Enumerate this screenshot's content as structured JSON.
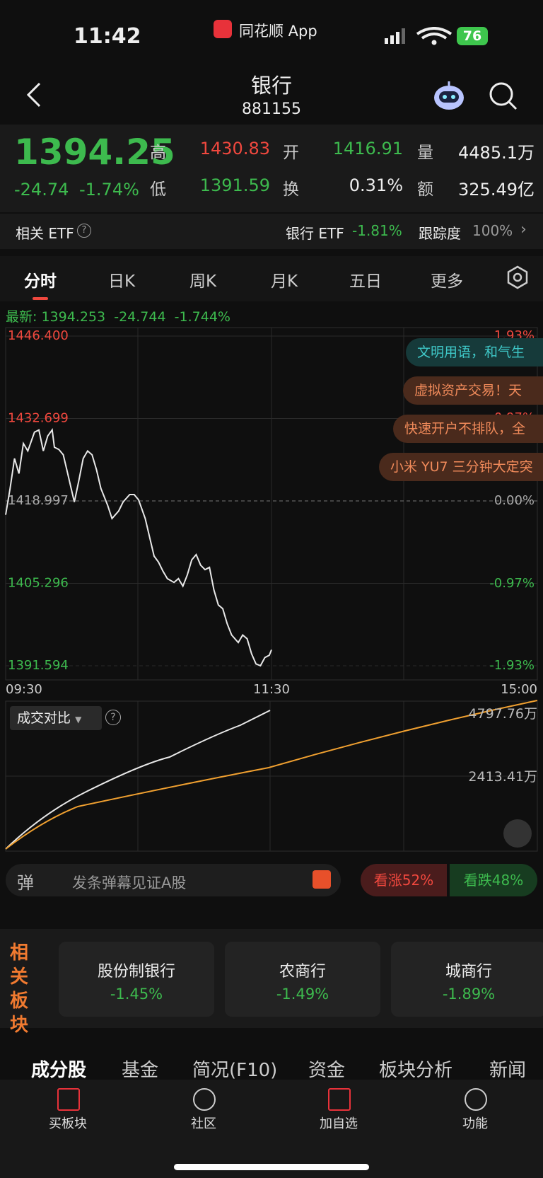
{
  "status_bar": {
    "time": "11:42",
    "app": "同花顺 App",
    "battery": "76"
  },
  "header": {
    "title": "银行",
    "code": "881155"
  },
  "quote": {
    "price": "1394.25",
    "change": "-24.74",
    "change_pct": "-1.74%",
    "fields": [
      {
        "label": "高",
        "value": "1430.83"
      },
      {
        "label": "开",
        "value": "1416.91"
      },
      {
        "label": "量",
        "value": "4485.1万"
      },
      {
        "label": "低",
        "value": "1391.59"
      },
      {
        "label": "换",
        "value": "0.31%"
      },
      {
        "label": "额",
        "value": "325.49亿"
      }
    ]
  },
  "etf": {
    "label": "相关 ETF",
    "name": "银行 ETF",
    "change": "-1.81%",
    "tracking_label": "跟踪度",
    "tracking": "100%"
  },
  "tabs": [
    "分时",
    "日K",
    "周K",
    "月K",
    "五日",
    "更多"
  ],
  "latest": {
    "label": "最新:",
    "price": "1394.253",
    "change": "-24.744",
    "change_pct": "-1.744%"
  },
  "danmaku": [
    "文明用语，和气生",
    "虚拟资产交易！天",
    "快速开户不排队，全",
    "小米 YU7 三分钟大定突"
  ],
  "chart_data": {
    "type": "line",
    "color": "#e8e8e8",
    "x": [
      0,
      2,
      4,
      6,
      8,
      10,
      13,
      15,
      17,
      19,
      21,
      22,
      24,
      26,
      28,
      31,
      33,
      35,
      37,
      39,
      41,
      43,
      46,
      48,
      51,
      53,
      56,
      58,
      60,
      63,
      65,
      67,
      69,
      71,
      73,
      76,
      78,
      80,
      82,
      84,
      86,
      88,
      90,
      92,
      94,
      96,
      98,
      100,
      102,
      105,
      107,
      109,
      111,
      113,
      115,
      117,
      119,
      120
    ],
    "values": [
      1416.69,
      1421.06,
      1426.05,
      1423.55,
      1428.55,
      1427.3,
      1430.42,
      1430.79,
      1427.3,
      1429.8,
      1430.8,
      1427.92,
      1427.55,
      1426.67,
      1423.55,
      1418.81,
      1422.31,
      1426.05,
      1427.3,
      1426.67,
      1424.18,
      1421.06,
      1418.31,
      1416.07,
      1417.31,
      1418.81,
      1420.06,
      1420.06,
      1419.18,
      1416.07,
      1412.94,
      1409.82,
      1408.82,
      1407.32,
      1406.08,
      1405.45,
      1406.08,
      1404.83,
      1406.7,
      1409.2,
      1410.07,
      1408.32,
      1407.57,
      1407.95,
      1404.2,
      1401.7,
      1401.08,
      1398.58,
      1396.71,
      1395.46,
      1396.71,
      1396.08,
      1393.59,
      1391.9,
      1391.6,
      1392.96,
      1393.34,
      1394.25
    ],
    "xlim": [
      0,
      240
    ],
    "xticks": [
      {
        "value": 0,
        "label": "09:30"
      },
      {
        "value": 120,
        "label": "11:30"
      },
      {
        "value": 240,
        "label": "15:00"
      }
    ],
    "ylim": [
      1391.594,
      1446.4
    ],
    "yticks": [
      {
        "value": 1446.4,
        "label": "1446.400"
      },
      {
        "value": 1432.699,
        "label": "1432.699"
      },
      {
        "value": 1418.997,
        "label": "1418.997"
      },
      {
        "value": 1405.296,
        "label": "1405.296"
      },
      {
        "value": 1391.594,
        "label": "1391.594"
      }
    ],
    "y2lim": [
      -1.93,
      1.93
    ],
    "y2ticks": [
      {
        "value": 1.93,
        "label": "1.93%"
      },
      {
        "value": 0.97,
        "label": "0.97%"
      },
      {
        "value": 0,
        "label": "0.00%"
      },
      {
        "value": -0.97,
        "label": "-0.97%"
      },
      {
        "value": -1.93,
        "label": "-1.93%"
      }
    ]
  },
  "volume": {
    "selector": "成交对比",
    "max_label": "4797.76万",
    "mid_label": "2413.41万"
  },
  "comment": {
    "icon": "弹",
    "placeholder": "发条弹幕见证A股",
    "bull": "看涨52%",
    "bear": "看跌48%"
  },
  "related": {
    "title": "相关板块",
    "items": [
      {
        "name": "股份制银行",
        "change": "-1.45%"
      },
      {
        "name": "农商行",
        "change": "-1.49%"
      },
      {
        "name": "城商行",
        "change": "-1.89%"
      }
    ]
  },
  "bottom_tabs": [
    "成分股",
    "基金",
    "简况(F10)",
    "资金",
    "板块分析",
    "新闻"
  ],
  "nav": [
    "买板块",
    "社区",
    "加自选",
    "功能"
  ]
}
